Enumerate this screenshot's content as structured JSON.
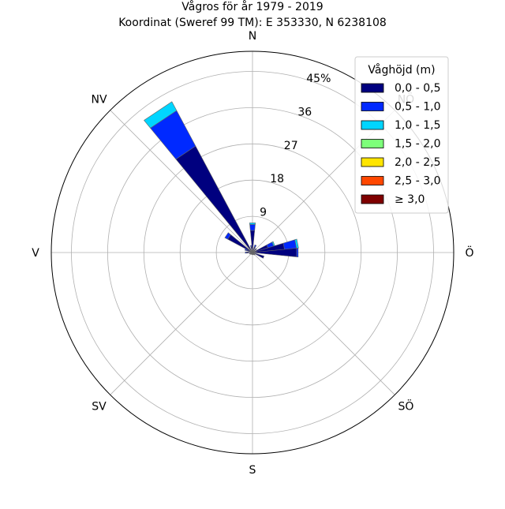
{
  "chart_data": {
    "type": "windrose",
    "title": "Vågros för år 1979 - 2019",
    "subtitle": "Koordinat (Sweref 99 TM): E 353330, N 6238108",
    "directions": [
      {
        "label": "N",
        "angle": 0
      },
      {
        "label": "NV",
        "angle": 315
      },
      {
        "label": "V",
        "angle": 270
      },
      {
        "label": "SV",
        "angle": 225
      },
      {
        "label": "S",
        "angle": 180
      },
      {
        "label": "SÖ",
        "angle": 135
      },
      {
        "label": "Ö",
        "angle": 90
      },
      {
        "label": "NÖ",
        "angle": 45
      }
    ],
    "radial_ticks": [
      "9",
      "18",
      "27",
      "36",
      "45%"
    ],
    "radial_tick_values": [
      9,
      18,
      27,
      36,
      45
    ],
    "rmax": 50,
    "sector_width_deg": 11.25,
    "legend": {
      "title": "Våghöjd (m)",
      "placement": "top-right",
      "entries": [
        {
          "label": "0,0 - 0,5",
          "color": "#00007f"
        },
        {
          "label": "0,5 - 1,0",
          "color": "#0029ff"
        },
        {
          "label": "1,0 - 1,5",
          "color": "#00d5ff"
        },
        {
          "label": "1,5 - 2,0",
          "color": "#7dff7a"
        },
        {
          "label": "2,0 - 2,5",
          "color": "#ffe500"
        },
        {
          "label": "2,5 - 3,0",
          "color": "#ff4700"
        },
        {
          "label": "≥ 3,0",
          "color": "#7f0000"
        }
      ]
    },
    "sectors": [
      {
        "direction": 0,
        "values": [
          5.5,
          1.5,
          0.4,
          0,
          0,
          0,
          0
        ]
      },
      {
        "direction": 22.5,
        "values": [
          1.5,
          0.5,
          0,
          0,
          0,
          0,
          0
        ]
      },
      {
        "direction": 45,
        "values": [
          1.0,
          0.3,
          0,
          0,
          0,
          0,
          0
        ]
      },
      {
        "direction": 67.5,
        "values": [
          4.0,
          1.5,
          0.3,
          0,
          0,
          0,
          0
        ]
      },
      {
        "direction": 78.75,
        "values": [
          8.0,
          3.0,
          0.5,
          0,
          0,
          0,
          0
        ]
      },
      {
        "direction": 90,
        "values": [
          11.0,
          0.4,
          0,
          0,
          0,
          0,
          0
        ]
      },
      {
        "direction": 112.5,
        "values": [
          3.0,
          0,
          0,
          0,
          0,
          0,
          0
        ]
      },
      {
        "direction": 135,
        "values": [
          0.8,
          0,
          0,
          0,
          0,
          0,
          0
        ]
      },
      {
        "direction": 157.5,
        "values": [
          0.6,
          0,
          0,
          0,
          0,
          0,
          0
        ]
      },
      {
        "direction": 180,
        "values": [
          0.5,
          0,
          0,
          0,
          0,
          0,
          0
        ]
      },
      {
        "direction": 202.5,
        "values": [
          0.5,
          0,
          0,
          0,
          0,
          0,
          0
        ]
      },
      {
        "direction": 225,
        "values": [
          0.6,
          0,
          0,
          0,
          0,
          0,
          0
        ]
      },
      {
        "direction": 247.5,
        "values": [
          0.8,
          0,
          0,
          0,
          0,
          0,
          0
        ]
      },
      {
        "direction": 270,
        "values": [
          1.5,
          0.3,
          0,
          0,
          0,
          0,
          0
        ]
      },
      {
        "direction": 292.5,
        "values": [
          1.5,
          0.5,
          0,
          0,
          0,
          0,
          0
        ]
      },
      {
        "direction": 303.75,
        "values": [
          7.0,
          0.8,
          0,
          0,
          0,
          0,
          0
        ]
      },
      {
        "direction": 326.25,
        "values": [
          30.0,
          10.0,
          2.5,
          0,
          0,
          0,
          0
        ]
      },
      {
        "direction": 348.75,
        "values": [
          1.5,
          0.3,
          0,
          0,
          0,
          0,
          0
        ]
      }
    ]
  }
}
